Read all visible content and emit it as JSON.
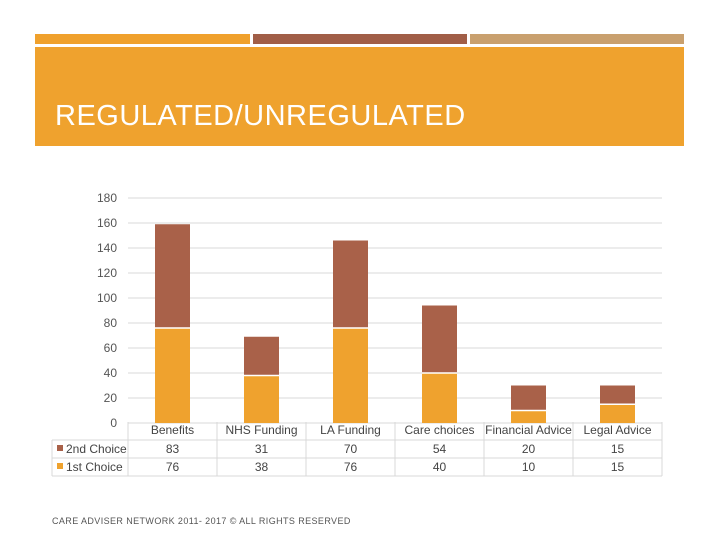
{
  "slide": {
    "title": "REGULATED/UNREGULATED",
    "footer": "CARE ADVISER NETWORK 2011- 2017 © ALL RIGHTS RESERVED"
  },
  "colors": {
    "banner": "#EFA22E",
    "strip_orange": "#F0A12C",
    "strip_brown": "#A15E47",
    "strip_tan": "#C9A06E",
    "second_choice": "#A96149",
    "first_choice": "#EFA22E"
  },
  "chart_data": {
    "type": "bar",
    "stacked": true,
    "categories": [
      "Benefits",
      "NHS Funding",
      "LA Funding",
      "Care choices",
      "Financial Advice",
      "Legal Advice"
    ],
    "series": [
      {
        "name": "2nd Choice",
        "values": [
          83,
          31,
          70,
          54,
          20,
          15
        ],
        "color": "#A96149"
      },
      {
        "name": "1st Choice",
        "values": [
          76,
          38,
          76,
          40,
          10,
          15
        ],
        "color": "#EFA22E"
      }
    ],
    "y_ticks": [
      "180",
      "160",
      "140",
      "120",
      "100",
      "80",
      "60",
      "40",
      "20",
      "0"
    ],
    "ylim": [
      0,
      180
    ],
    "grid": true,
    "legend": "data-table"
  }
}
